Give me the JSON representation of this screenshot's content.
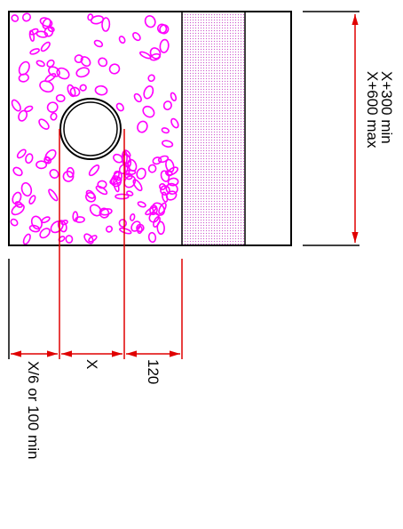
{
  "title": "",
  "labels": {
    "max_depth": "X+600  max",
    "min_depth": "X+300  min",
    "side_clearance": "X/6  or  100  min",
    "pipe_dia": "X",
    "bedding": "120"
  },
  "colors": {
    "outline": "#000000",
    "dimension": "#e00000",
    "aggregate": "#ff00ff"
  }
}
